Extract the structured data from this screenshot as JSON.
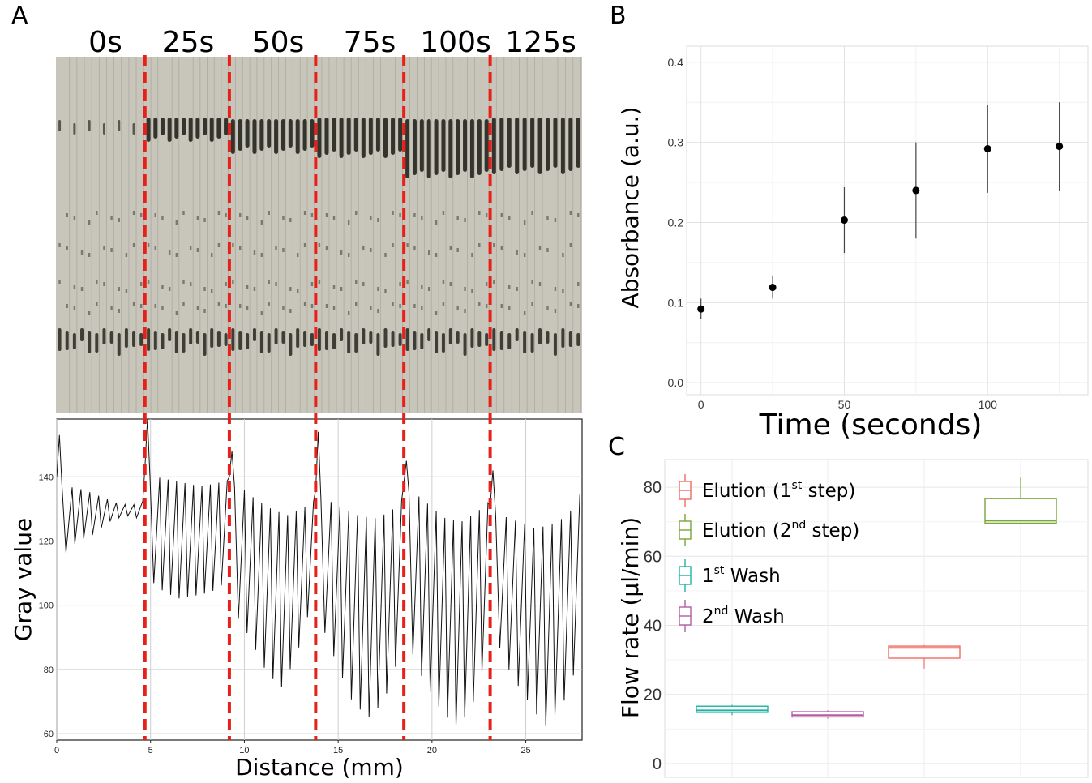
{
  "panel_labels": {
    "a": "A",
    "b": "B",
    "c": "C"
  },
  "gel": {
    "time_labels": [
      "0s",
      "25s",
      "50s",
      "75s",
      "100s",
      "125s"
    ]
  },
  "chart_data": [
    {
      "panel": "A",
      "type": "line",
      "title": "",
      "xlabel": "Distance (mm)",
      "ylabel": "Gray value",
      "xlim": [
        0,
        28
      ],
      "ylim": [
        58,
        158
      ],
      "xticks": [
        0,
        5,
        10,
        15,
        20,
        25
      ],
      "yticks": [
        60,
        80,
        100,
        120,
        140
      ],
      "grid": true,
      "separator_x": [
        4.7,
        9.2,
        13.8,
        18.5,
        23.1
      ],
      "separator_color": "#e8201a",
      "segments": [
        {
          "x0": 0.0,
          "x1": 4.7,
          "lo": [
            115,
            120,
            122,
            126,
            128,
            127
          ],
          "hi": [
            137,
            136,
            134,
            132,
            131,
            133
          ],
          "peak": 153
        },
        {
          "x0": 4.7,
          "x1": 9.2,
          "lo": [
            108,
            104,
            102,
            103,
            104,
            107
          ],
          "hi": [
            140,
            139,
            138,
            137,
            138,
            139
          ],
          "peak": 158
        },
        {
          "x0": 9.2,
          "x1": 13.8,
          "lo": [
            98,
            90,
            80,
            74,
            84,
            101
          ],
          "hi": [
            137,
            133,
            130,
            128,
            130,
            133
          ],
          "peak": 148
        },
        {
          "x0": 13.8,
          "x1": 18.5,
          "lo": [
            95,
            82,
            70,
            65,
            70,
            85
          ],
          "hi": [
            133,
            130,
            128,
            127,
            129,
            134
          ],
          "peak": 154
        },
        {
          "x0": 18.5,
          "x1": 23.1,
          "lo": [
            88,
            76,
            68,
            62,
            67,
            84
          ],
          "hi": [
            135,
            131,
            127,
            126,
            129,
            133
          ],
          "peak": 145
        },
        {
          "x0": 23.1,
          "x1": 28.0,
          "lo": [
            90,
            78,
            70,
            62,
            68,
            82
          ],
          "hi": [
            128,
            126,
            124,
            125,
            128,
            137
          ],
          "peak": 142
        }
      ]
    },
    {
      "panel": "B",
      "type": "scatter",
      "title": "",
      "xlabel": "Time (seconds)",
      "ylabel": "Absorbance (a.u.)",
      "xlim": [
        -5,
        135
      ],
      "ylim": [
        -0.015,
        0.42
      ],
      "xticks": [
        0,
        50,
        100
      ],
      "yticks": [
        0.0,
        0.1,
        0.2,
        0.3,
        0.4
      ],
      "ytick_labels": [
        "0.0",
        "0.1",
        "0.2",
        "0.3",
        "0.4"
      ],
      "grid": true,
      "x": [
        0,
        25,
        50,
        75,
        100,
        125
      ],
      "y": [
        0.092,
        0.119,
        0.203,
        0.24,
        0.292,
        0.295
      ],
      "error_low": [
        0.08,
        0.105,
        0.162,
        0.18,
        0.237,
        0.239
      ],
      "error_high": [
        0.105,
        0.134,
        0.244,
        0.3,
        0.347,
        0.35
      ]
    },
    {
      "panel": "C",
      "type": "box",
      "title": "",
      "xlabel": "",
      "ylabel": "Flow rate (µl/min)",
      "ylim": [
        -4,
        88
      ],
      "yticks": [
        0,
        20,
        40,
        60,
        80
      ],
      "grid": true,
      "legend_position": "top-left",
      "series": [
        {
          "name_main": "1",
          "name_sup": "st",
          "name_rest": " Wash",
          "color": "#1eb3a4",
          "min": 14.0,
          "q1": 14.8,
          "median": 15.4,
          "q3": 16.6,
          "max": 17.0
        },
        {
          "name_main": "2",
          "name_sup": "nd",
          "name_rest": " Wash",
          "color": "#b45ca6",
          "min": 13.0,
          "q1": 13.5,
          "median": 14.0,
          "q3": 15.0,
          "max": 15.4
        },
        {
          "name_main": "Elution (1",
          "name_sup": "st",
          "name_rest": " step)",
          "color": "#ef6d62",
          "min": 27.5,
          "q1": 30.5,
          "median": 33.5,
          "q3": 34.0,
          "max": 34.3
        },
        {
          "name_main": "Elution (2",
          "name_sup": "nd",
          "name_rest": " step)",
          "color": "#7ba639",
          "min": 69.2,
          "q1": 69.6,
          "median": 70.3,
          "q3": 76.7,
          "max": 82.8
        }
      ],
      "legend_order": [
        2,
        3,
        0,
        1
      ]
    }
  ]
}
